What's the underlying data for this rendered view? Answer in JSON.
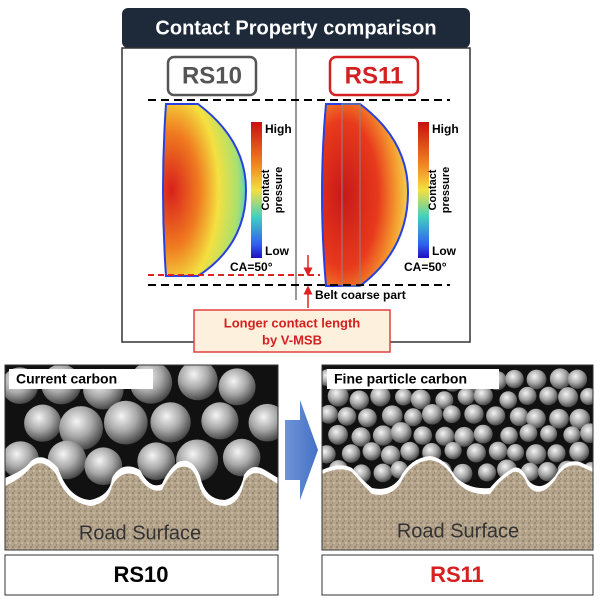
{
  "header": {
    "title": "Contact Property comparison"
  },
  "panels": [
    {
      "label": "RS10",
      "scale": {
        "high": "High",
        "title": [
          "Contact",
          "pressure"
        ],
        "low": "Low"
      },
      "angle": "CA=50°"
    },
    {
      "label": "RS11",
      "scale": {
        "high": "High",
        "title": [
          "Contact",
          "pressure"
        ],
        "low": "Low"
      },
      "angle": "CA=50°"
    }
  ],
  "belt_note": "Belt coarse part",
  "callout": [
    "Longer contact length",
    "by V-MSB"
  ],
  "carbon": [
    {
      "caption": "Current carbon",
      "surface": "Road Surface",
      "label": "RS10"
    },
    {
      "caption": "Fine particle carbon",
      "surface": "Road Surface",
      "label": "RS11"
    }
  ]
}
